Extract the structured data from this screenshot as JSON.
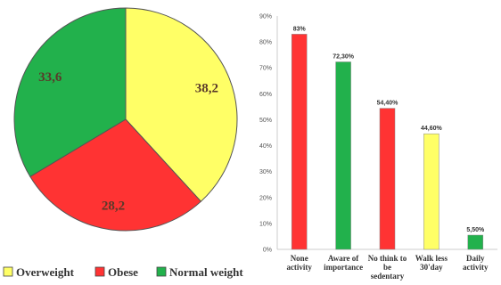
{
  "chart_data": [
    {
      "type": "pie",
      "title": "",
      "labels": [
        "Overweight",
        "Obese",
        "Normal weight"
      ],
      "values": [
        38.2,
        28.2,
        33.6
      ],
      "value_labels": [
        "38,2",
        "28,2",
        "33,6"
      ],
      "colors": [
        "#ffff66",
        "#ff3333",
        "#22b14c"
      ],
      "legend": {
        "position": "bottom",
        "entries": [
          "Overweight",
          "Obese",
          "Normal weight"
        ]
      }
    },
    {
      "type": "bar",
      "title": "",
      "xlabel": "",
      "ylabel": "",
      "categories": [
        [
          "None",
          "activity"
        ],
        [
          "Aware of",
          "importance"
        ],
        [
          "No think to",
          "be",
          "sedentary"
        ],
        [
          "Walk less",
          "30'day"
        ],
        [
          "Daily",
          "activity"
        ]
      ],
      "values": [
        83.0,
        72.3,
        54.4,
        44.6,
        5.5
      ],
      "value_labels": [
        "83%",
        "72,30%",
        "54,40%",
        "44,60%",
        "5,50%"
      ],
      "colors": [
        "#ff3333",
        "#22b14c",
        "#ff3333",
        "#ffff66",
        "#22b14c"
      ],
      "ylim": [
        0,
        90
      ],
      "yticks": [
        0,
        10,
        20,
        30,
        40,
        50,
        60,
        70,
        80,
        90
      ],
      "ytick_labels": [
        "0%",
        "10%",
        "20%",
        "30%",
        "40%",
        "50%",
        "60%",
        "70%",
        "80%",
        "90%"
      ],
      "grid": false
    }
  ]
}
